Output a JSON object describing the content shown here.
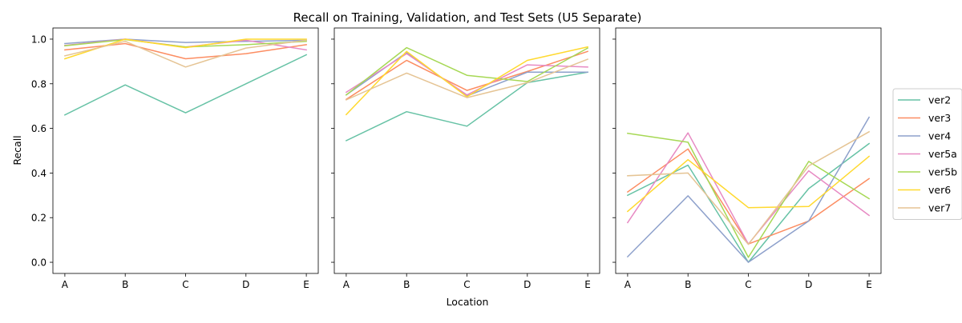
{
  "chart_data": {
    "type": "line",
    "title": "Recall on Training, Validation, and Test Sets (U5 Separate)",
    "xlabel": "Location",
    "ylabel": "Recall",
    "categories": [
      "A",
      "B",
      "C",
      "D",
      "E"
    ],
    "ylim": [
      -0.05,
      1.05
    ],
    "yticks": [
      "0.0",
      "0.2",
      "0.4",
      "0.6",
      "0.8",
      "1.0"
    ],
    "grid": false,
    "legend_position": "right",
    "series_colors": {
      "ver2": "#66c2a5",
      "ver3": "#fc8d62",
      "ver4": "#8da0cb",
      "ver5a": "#e78ac3",
      "ver5b": "#a6d854",
      "ver6": "#ffd92f",
      "ver7": "#e5c494"
    },
    "legend": [
      "ver2",
      "ver3",
      "ver4",
      "ver5a",
      "ver5b",
      "ver6",
      "ver7"
    ],
    "panels": [
      {
        "series": [
          {
            "name": "ver2",
            "values": [
              0.66,
              0.795,
              0.67,
              0.8,
              0.93
            ]
          },
          {
            "name": "ver3",
            "values": [
              0.952,
              0.98,
              0.912,
              0.935,
              0.975
            ]
          },
          {
            "name": "ver4",
            "values": [
              0.98,
              1.0,
              0.985,
              0.99,
              0.995
            ]
          },
          {
            "name": "ver5a",
            "values": [
              0.972,
              1.0,
              0.965,
              0.995,
              0.952
            ]
          },
          {
            "name": "ver5b",
            "values": [
              0.97,
              0.998,
              0.965,
              0.975,
              0.99
            ]
          },
          {
            "name": "ver6",
            "values": [
              0.912,
              1.0,
              0.962,
              1.0,
              1.0
            ]
          },
          {
            "name": "ver7",
            "values": [
              0.925,
              0.99,
              0.875,
              0.96,
              0.995
            ]
          }
        ]
      },
      {
        "series": [
          {
            "name": "ver2",
            "values": [
              0.545,
              0.675,
              0.61,
              0.805,
              0.852
            ]
          },
          {
            "name": "ver3",
            "values": [
              0.73,
              0.905,
              0.77,
              0.855,
              0.945
            ]
          },
          {
            "name": "ver4",
            "values": [
              0.75,
              0.94,
              0.745,
              0.852,
              0.852
            ]
          },
          {
            "name": "ver5a",
            "values": [
              0.762,
              0.935,
              0.75,
              0.885,
              0.875
            ]
          },
          {
            "name": "ver5b",
            "values": [
              0.75,
              0.962,
              0.838,
              0.81,
              0.96
            ]
          },
          {
            "name": "ver6",
            "values": [
              0.662,
              0.945,
              0.742,
              0.905,
              0.965
            ]
          },
          {
            "name": "ver7",
            "values": [
              0.728,
              0.848,
              0.738,
              0.805,
              0.91
            ]
          }
        ]
      },
      {
        "series": [
          {
            "name": "ver2",
            "values": [
              0.3,
              0.435,
              0.0,
              0.33,
              0.532
            ]
          },
          {
            "name": "ver3",
            "values": [
              0.315,
              0.508,
              0.082,
              0.185,
              0.375
            ]
          },
          {
            "name": "ver4",
            "values": [
              0.025,
              0.298,
              0.0,
              0.185,
              0.65
            ]
          },
          {
            "name": "ver5a",
            "values": [
              0.178,
              0.58,
              0.082,
              0.41,
              0.21
            ]
          },
          {
            "name": "ver5b",
            "values": [
              0.578,
              0.538,
              0.022,
              0.452,
              0.285
            ]
          },
          {
            "name": "ver6",
            "values": [
              0.228,
              0.46,
              0.245,
              0.25,
              0.475
            ]
          },
          {
            "name": "ver7",
            "values": [
              0.388,
              0.4,
              0.08,
              0.432,
              0.585
            ]
          }
        ]
      }
    ]
  }
}
